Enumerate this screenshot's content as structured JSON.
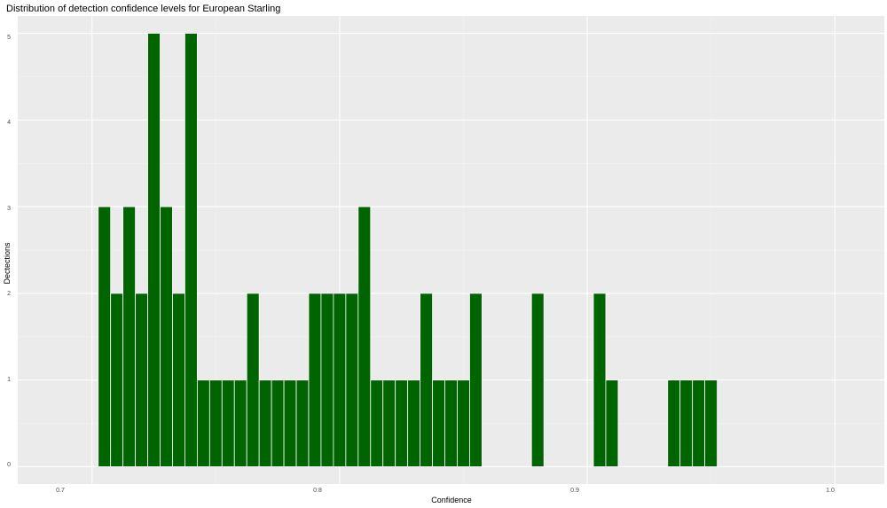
{
  "chart_data": {
    "type": "bar",
    "title": "Distribution of detection confidence levels for European Starling",
    "xlabel": "Confidence",
    "ylabel": "Dectections",
    "xlim": [
      0.67,
      1.02
    ],
    "ylim": [
      -0.2,
      5.2
    ],
    "x_ticks": [
      "0.7",
      "0.8",
      "0.9",
      "1.0"
    ],
    "y_ticks": [
      "0",
      "1",
      "2",
      "3",
      "4",
      "5"
    ],
    "x_tick_values": [
      0.7,
      0.8,
      0.9,
      1.0
    ],
    "y_tick_values": [
      0,
      1,
      2,
      3,
      4,
      5
    ],
    "bin_width": 0.005,
    "bin_start": 0.7025,
    "x": [
      0.705,
      0.71,
      0.715,
      0.72,
      0.725,
      0.73,
      0.735,
      0.74,
      0.745,
      0.75,
      0.755,
      0.76,
      0.765,
      0.77,
      0.775,
      0.78,
      0.785,
      0.79,
      0.795,
      0.8,
      0.805,
      0.81,
      0.815,
      0.82,
      0.825,
      0.83,
      0.835,
      0.84,
      0.845,
      0.85,
      0.855,
      0.86,
      0.865,
      0.87,
      0.875,
      0.88,
      0.885,
      0.89,
      0.895,
      0.9,
      0.905,
      0.91,
      0.915,
      0.92,
      0.925,
      0.93,
      0.935,
      0.94,
      0.945,
      0.95
    ],
    "values": [
      3,
      2,
      3,
      2,
      5,
      3,
      2,
      5,
      1,
      1,
      1,
      1,
      2,
      1,
      1,
      1,
      1,
      2,
      2,
      2,
      2,
      3,
      1,
      1,
      1,
      1,
      2,
      1,
      1,
      1,
      2,
      0,
      0,
      0,
      0,
      2,
      0,
      0,
      0,
      0,
      2,
      1,
      0,
      0,
      0,
      0,
      1,
      1,
      1,
      1
    ],
    "bar_color": "#006400",
    "bar_outline_color": "#ffffff",
    "panel_background": "#ebebeb",
    "grid": true,
    "legend": "none"
  }
}
